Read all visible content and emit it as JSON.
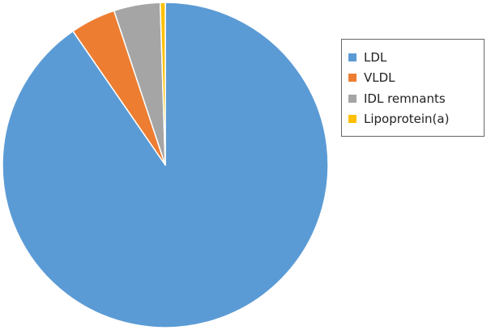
{
  "chart_data": {
    "type": "pie",
    "title": "",
    "start_angle_deg": 0,
    "direction": "clockwise",
    "slices": [
      {
        "label": "LDL",
        "value": 90.4,
        "color": "#5b9bd5"
      },
      {
        "label": "VLDL",
        "value": 4.5,
        "color": "#ed7d31"
      },
      {
        "label": "IDL remnants",
        "value": 4.6,
        "color": "#a5a5a5"
      },
      {
        "label": "Lipoprotein(a)",
        "value": 0.5,
        "color": "#ffc000"
      }
    ],
    "legend_position": "right",
    "slice_border_color": "#ffffff"
  }
}
